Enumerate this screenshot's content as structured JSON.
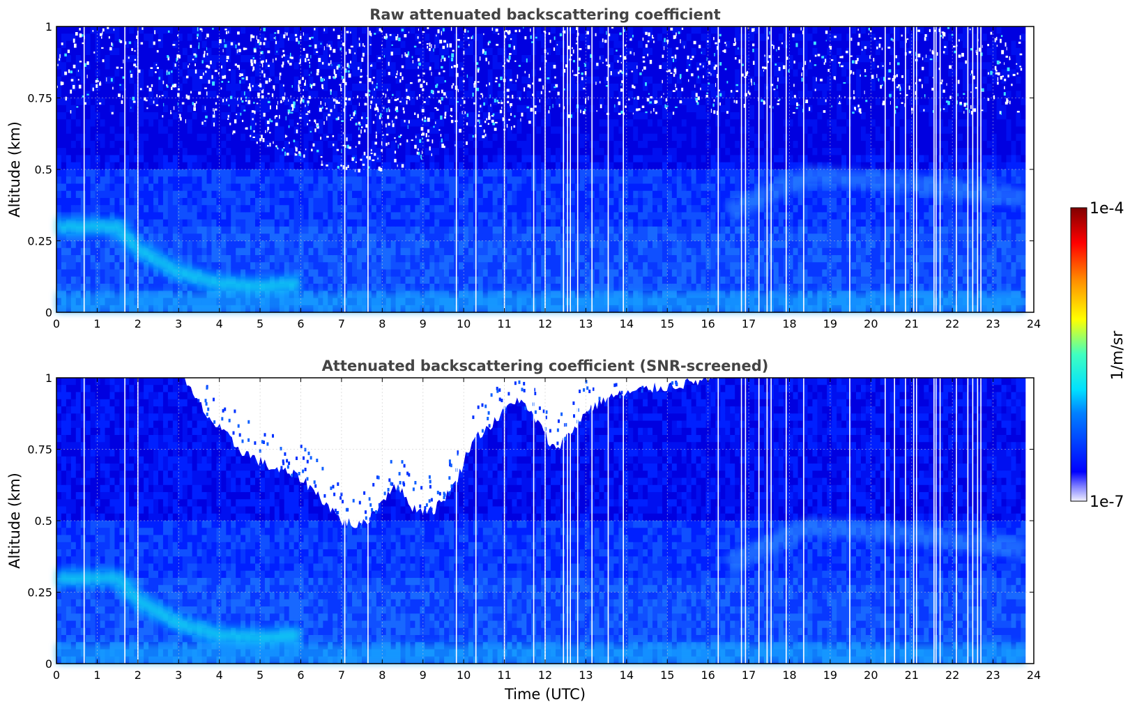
{
  "chart_data": [
    {
      "type": "heatmap",
      "title": "Raw attenuated backscattering coefficient",
      "xlabel": "",
      "ylabel": "Altitude (km)",
      "xlim": [
        0,
        24
      ],
      "ylim": [
        0,
        1
      ],
      "xticks": [
        "0",
        "1",
        "2",
        "3",
        "4",
        "5",
        "6",
        "7",
        "8",
        "9",
        "10",
        "11",
        "12",
        "13",
        "14",
        "15",
        "16",
        "17",
        "18",
        "19",
        "20",
        "21",
        "22",
        "23",
        "24"
      ],
      "yticks": [
        "0",
        "0.25",
        "0.5",
        "0.75",
        "1"
      ],
      "grid": true,
      "data_end_time": 23.8,
      "features": {
        "aerosol_layer_top_km": [
          {
            "t": 0.0,
            "z": 0.3
          },
          {
            "t": 1.5,
            "z": 0.3
          },
          {
            "t": 2.0,
            "z": 0.22
          },
          {
            "t": 3.0,
            "z": 0.14
          },
          {
            "t": 4.0,
            "z": 0.1
          },
          {
            "t": 5.0,
            "z": 0.09
          },
          {
            "t": 6.0,
            "z": 0.1
          }
        ],
        "evening_layer_km": [
          {
            "t": 16.5,
            "z": 0.35
          },
          {
            "t": 18.5,
            "z": 0.48
          },
          {
            "t": 21.0,
            "z": 0.45
          },
          {
            "t": 23.8,
            "z": 0.4
          }
        ]
      },
      "data_gaps_hours": [
        0.68,
        1.68,
        2.0,
        7.08,
        7.65,
        9.82,
        10.3,
        11.0,
        11.72,
        12.0,
        12.45,
        12.55,
        12.62,
        12.8,
        13.15,
        13.55,
        13.92,
        16.25,
        16.82,
        16.92,
        17.25,
        17.45,
        17.55,
        17.92,
        18.35,
        19.48,
        20.35,
        20.58,
        20.85,
        21.05,
        21.12,
        21.55,
        21.6,
        21.7,
        22.1,
        22.38,
        22.5,
        22.62,
        22.7
      ]
    },
    {
      "type": "heatmap",
      "title": "Attenuated backscattering coefficient (SNR-screened)",
      "xlabel": "Time (UTC)",
      "ylabel": "Altitude (km)",
      "xlim": [
        0,
        24
      ],
      "ylim": [
        0,
        1
      ],
      "xticks": [
        "0",
        "1",
        "2",
        "3",
        "4",
        "5",
        "6",
        "7",
        "8",
        "9",
        "10",
        "11",
        "12",
        "13",
        "14",
        "15",
        "16",
        "17",
        "18",
        "19",
        "20",
        "21",
        "22",
        "23",
        "24"
      ],
      "yticks": [
        "0",
        "0.25",
        "0.5",
        "0.75",
        "1"
      ],
      "grid": true,
      "data_end_time": 23.8,
      "screened_region_lower_boundary_km": [
        {
          "t": 3.1,
          "z": 1.0
        },
        {
          "t": 3.3,
          "z": 0.95
        },
        {
          "t": 3.8,
          "z": 0.85
        },
        {
          "t": 4.5,
          "z": 0.75
        },
        {
          "t": 5.2,
          "z": 0.69
        },
        {
          "t": 6.0,
          "z": 0.65
        },
        {
          "t": 6.5,
          "z": 0.58
        },
        {
          "t": 7.0,
          "z": 0.5
        },
        {
          "t": 7.5,
          "z": 0.48
        },
        {
          "t": 7.9,
          "z": 0.55
        },
        {
          "t": 8.3,
          "z": 0.63
        },
        {
          "t": 8.8,
          "z": 0.54
        },
        {
          "t": 9.3,
          "z": 0.54
        },
        {
          "t": 9.8,
          "z": 0.63
        },
        {
          "t": 10.2,
          "z": 0.78
        },
        {
          "t": 10.8,
          "z": 0.85
        },
        {
          "t": 11.3,
          "z": 0.93
        },
        {
          "t": 11.8,
          "z": 0.85
        },
        {
          "t": 12.2,
          "z": 0.75
        },
        {
          "t": 12.6,
          "z": 0.8
        },
        {
          "t": 13.0,
          "z": 0.88
        },
        {
          "t": 13.5,
          "z": 0.93
        },
        {
          "t": 14.5,
          "z": 0.96
        },
        {
          "t": 15.5,
          "z": 0.98
        },
        {
          "t": 16.2,
          "z": 1.0
        }
      ]
    }
  ],
  "colorbar": {
    "label": "1/m/sr",
    "max_label": "1e-4",
    "min_label": "1e-7",
    "scale": "log",
    "colormap": "jet",
    "colors": [
      "#ededff",
      "#0000ff",
      "#00a0ff",
      "#00ffff",
      "#80ff80",
      "#ffff00",
      "#ff8000",
      "#ff0000",
      "#800000"
    ]
  }
}
